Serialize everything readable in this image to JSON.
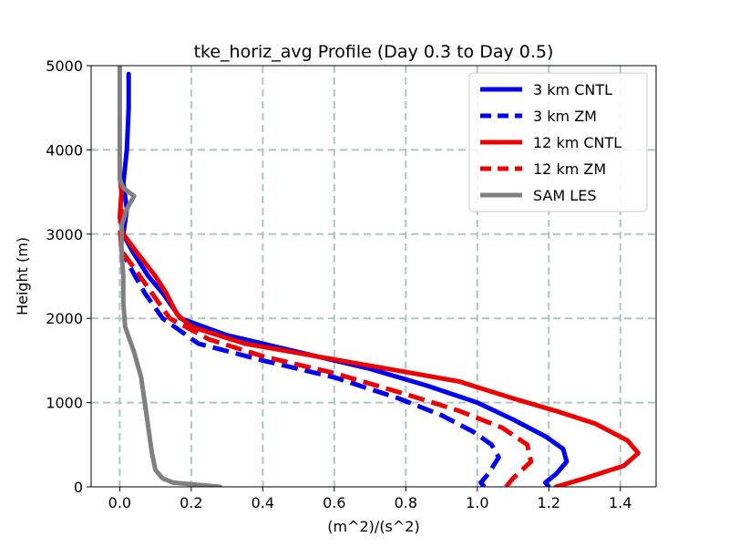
{
  "chart_data": {
    "type": "line",
    "title": "tke_horiz_avg Profile (Day 0.3 to Day 0.5)",
    "xlabel": "(m^2)/(s^2)",
    "ylabel": "Height (m)",
    "xlim": [
      -0.08,
      1.5
    ],
    "ylim": [
      0,
      5000
    ],
    "xticks": [
      0.0,
      0.2,
      0.4,
      0.6,
      0.8,
      1.0,
      1.2,
      1.4
    ],
    "xtick_labels": [
      "0.0",
      "0.2",
      "0.4",
      "0.6",
      "0.8",
      "1.0",
      "1.2",
      "1.4"
    ],
    "yticks": [
      0,
      1000,
      2000,
      3000,
      4000,
      5000
    ],
    "ytick_labels": [
      "0",
      "1000",
      "2000",
      "3000",
      "4000",
      "5000"
    ],
    "grid": true,
    "legend_position": "top-right",
    "series": [
      {
        "name": "3 km CNTL",
        "color": "#0000ee",
        "dash": "solid",
        "points": [
          [
            1.2,
            0
          ],
          [
            1.19,
            50
          ],
          [
            1.22,
            150
          ],
          [
            1.25,
            300
          ],
          [
            1.24,
            450
          ],
          [
            1.19,
            600
          ],
          [
            1.1,
            800
          ],
          [
            1.0,
            1000
          ],
          [
            0.86,
            1200
          ],
          [
            0.7,
            1400
          ],
          [
            0.5,
            1600
          ],
          [
            0.3,
            1800
          ],
          [
            0.17,
            2000
          ],
          [
            0.12,
            2300
          ],
          [
            0.08,
            2500
          ],
          [
            0.035,
            2800
          ],
          [
            0.01,
            3000
          ],
          [
            0.02,
            3300
          ],
          [
            0.01,
            3600
          ],
          [
            0.02,
            4000
          ],
          [
            0.025,
            4500
          ],
          [
            0.025,
            4900
          ]
        ]
      },
      {
        "name": "3 km ZM",
        "color": "#0000ee",
        "dash": "dashed",
        "points": [
          [
            1.02,
            0
          ],
          [
            1.01,
            50
          ],
          [
            1.03,
            150
          ],
          [
            1.06,
            350
          ],
          [
            1.04,
            500
          ],
          [
            0.99,
            650
          ],
          [
            0.9,
            850
          ],
          [
            0.78,
            1050
          ],
          [
            0.6,
            1300
          ],
          [
            0.4,
            1500
          ],
          [
            0.22,
            1700
          ],
          [
            0.12,
            2000
          ],
          [
            0.07,
            2300
          ],
          [
            0.03,
            2600
          ],
          [
            0.005,
            2800
          ]
        ]
      },
      {
        "name": "12 km CNTL",
        "color": "#ee0000",
        "dash": "solid",
        "points": [
          [
            1.22,
            0
          ],
          [
            1.3,
            100
          ],
          [
            1.41,
            250
          ],
          [
            1.45,
            400
          ],
          [
            1.42,
            550
          ],
          [
            1.33,
            750
          ],
          [
            1.22,
            900
          ],
          [
            1.1,
            1050
          ],
          [
            0.95,
            1250
          ],
          [
            0.75,
            1400
          ],
          [
            0.55,
            1550
          ],
          [
            0.35,
            1700
          ],
          [
            0.2,
            1900
          ],
          [
            0.16,
            2050
          ],
          [
            0.13,
            2300
          ],
          [
            0.1,
            2500
          ],
          [
            0.045,
            2800
          ],
          [
            0.01,
            3000
          ],
          [
            0.0,
            3200
          ],
          [
            0.005,
            3500
          ],
          [
            0.0,
            3700
          ]
        ]
      },
      {
        "name": "12 km ZM",
        "color": "#ee0000",
        "dash": "dashed",
        "points": [
          [
            1.08,
            0
          ],
          [
            1.1,
            100
          ],
          [
            1.15,
            300
          ],
          [
            1.14,
            500
          ],
          [
            1.07,
            700
          ],
          [
            0.95,
            900
          ],
          [
            0.8,
            1100
          ],
          [
            0.6,
            1350
          ],
          [
            0.4,
            1550
          ],
          [
            0.25,
            1750
          ],
          [
            0.14,
            2000
          ],
          [
            0.09,
            2300
          ],
          [
            0.04,
            2600
          ],
          [
            0.005,
            2800
          ],
          [
            0.0,
            3100
          ],
          [
            0.005,
            3300
          ]
        ]
      },
      {
        "name": "SAM LES",
        "color": "#808080",
        "dash": "solid",
        "points": [
          [
            0.28,
            0
          ],
          [
            0.15,
            50
          ],
          [
            0.12,
            100
          ],
          [
            0.1,
            200
          ],
          [
            0.09,
            400
          ],
          [
            0.08,
            700
          ],
          [
            0.07,
            1000
          ],
          [
            0.06,
            1300
          ],
          [
            0.04,
            1600
          ],
          [
            0.015,
            1900
          ],
          [
            0.01,
            2200
          ],
          [
            0.01,
            2500
          ],
          [
            0.005,
            2800
          ],
          [
            0.005,
            3100
          ],
          [
            0.02,
            3300
          ],
          [
            0.04,
            3450
          ],
          [
            0.01,
            3550
          ],
          [
            0.0,
            3650
          ],
          [
            0.0,
            4000
          ],
          [
            0.0,
            5000
          ]
        ]
      }
    ]
  }
}
